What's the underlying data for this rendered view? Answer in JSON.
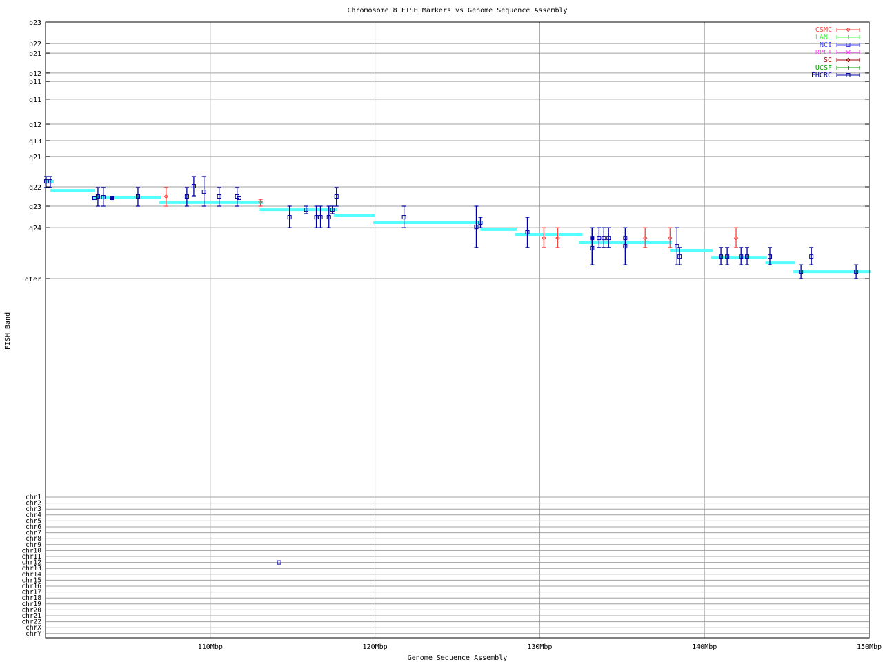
{
  "chart_data": {
    "type": "scatter",
    "title": "Chromosome 8 FISH Markers vs Genome Sequence Assembly",
    "xlabel": "Genome Sequence Assembly",
    "ylabel": "FISH Band",
    "xlim": [
      100,
      150
    ],
    "grid": true,
    "legend_position": "top-right",
    "x_ticks": [
      {
        "value": 110,
        "label": "110Mbp"
      },
      {
        "value": 120,
        "label": "120Mbp"
      },
      {
        "value": 130,
        "label": "130Mbp"
      },
      {
        "value": 140,
        "label": "140Mbp"
      },
      {
        "value": 150,
        "label": "150Mbp"
      }
    ],
    "band_ticks": [
      {
        "value": 0,
        "label": "p23"
      },
      {
        "value": 12.2,
        "label": "p22"
      },
      {
        "value": 17.7,
        "label": "p21"
      },
      {
        "value": 29.0,
        "label": "p12"
      },
      {
        "value": 33.8,
        "label": "p11"
      },
      {
        "value": 43.9,
        "label": "q11"
      },
      {
        "value": 58.1,
        "label": "q12"
      },
      {
        "value": 67.5,
        "label": "q13"
      },
      {
        "value": 76.5,
        "label": "q21"
      },
      {
        "value": 93.8,
        "label": "q22"
      },
      {
        "value": 104.8,
        "label": "q23"
      },
      {
        "value": 117.0,
        "label": "q24"
      },
      {
        "value": 146.0,
        "label": "qter"
      }
    ],
    "band_ylim": [
      0,
      146
    ],
    "chr_ticks": [
      "chr1",
      "chr2",
      "chr3",
      "chr4",
      "chr5",
      "chr6",
      "chr7",
      "chr8",
      "chr9",
      "chr10",
      "chr11",
      "chr12",
      "chr13",
      "chr14",
      "chr15",
      "chr16",
      "chr17",
      "chr18",
      "chr19",
      "chr20",
      "chr21",
      "chr22",
      "chrX",
      "chrY"
    ],
    "legend": [
      {
        "name": "CSMC",
        "color": "#ff4040",
        "marker": "diamond"
      },
      {
        "name": "LANL",
        "color": "#40ff40",
        "marker": "plus"
      },
      {
        "name": "NCI",
        "color": "#4040ff",
        "marker": "square"
      },
      {
        "name": "RPCI",
        "color": "#ff40ff",
        "marker": "cross"
      },
      {
        "name": "SC",
        "color": "#a00000",
        "marker": "diamond"
      },
      {
        "name": "UCSF",
        "color": "#00a000",
        "marker": "plus"
      },
      {
        "name": "FHCRC",
        "color": "#0000a0",
        "marker": "square"
      }
    ],
    "assembly_color": "#55ffff",
    "assembly_segments": [
      {
        "x": [
          100.0,
          100.5
        ],
        "y": 90.7
      },
      {
        "x": [
          100.3,
          103.0
        ],
        "y": 95.8
      },
      {
        "x": [
          102.8,
          107.0
        ],
        "y": 99.7
      },
      {
        "x": [
          106.9,
          113.2
        ],
        "y": 102.8
      },
      {
        "x": [
          113.0,
          117.7
        ],
        "y": 106.8
      },
      {
        "x": [
          117.5,
          120.0
        ],
        "y": 109.9
      },
      {
        "x": [
          119.9,
          126.5
        ],
        "y": 114.2
      },
      {
        "x": [
          126.4,
          128.6
        ],
        "y": 118.1
      },
      {
        "x": [
          128.5,
          132.6
        ],
        "y": 120.9
      },
      {
        "x": [
          132.4,
          138.0
        ],
        "y": 125.6
      },
      {
        "x": [
          137.9,
          140.5
        ],
        "y": 129.9
      },
      {
        "x": [
          140.4,
          143.8
        ],
        "y": 133.9
      },
      {
        "x": [
          143.7,
          145.5
        ],
        "y": 137.0
      },
      {
        "x": [
          145.4,
          150.1
        ],
        "y": 142.1
      }
    ],
    "points": [
      {
        "set": "FHCRC",
        "x": 100.04,
        "y": 90.7,
        "ylo": 87.9,
        "yhi": 94.2
      },
      {
        "set": "FHCRC",
        "x": 100.29,
        "y": 90.7,
        "ylo": 87.9,
        "yhi": 94.2
      },
      {
        "set": "FHCRC",
        "x": 102.97,
        "y": 100.1
      },
      {
        "set": "FHCRC",
        "x": 103.18,
        "y": 99.3,
        "ylo": 94.2,
        "yhi": 104.8
      },
      {
        "set": "FHCRC",
        "x": 103.51,
        "y": 99.7,
        "ylo": 94.2,
        "yhi": 104.8
      },
      {
        "set": "FHCRC",
        "x": 104.02,
        "y": 100.1,
        "filled": true
      },
      {
        "set": "FHCRC",
        "x": 105.61,
        "y": 99.3,
        "ylo": 94.2,
        "yhi": 104.8
      },
      {
        "set": "CSMC",
        "x": 107.32,
        "y": 99.3,
        "ylo": 94.2,
        "yhi": 104.8
      },
      {
        "set": "FHCRC",
        "x": 108.58,
        "y": 99.3,
        "ylo": 94.2,
        "yhi": 104.8
      },
      {
        "set": "FHCRC",
        "x": 109.0,
        "y": 93.4,
        "ylo": 87.9,
        "yhi": 98.9
      },
      {
        "set": "FHCRC",
        "x": 109.62,
        "y": 96.6,
        "ylo": 87.9,
        "yhi": 104.8
      },
      {
        "set": "FHCRC",
        "x": 110.54,
        "y": 99.3,
        "ylo": 94.2,
        "yhi": 104.8
      },
      {
        "set": "FHCRC",
        "x": 111.63,
        "y": 99.3,
        "ylo": 94.2,
        "yhi": 104.8
      },
      {
        "set": "FHCRC",
        "x": 111.76,
        "y": 100.1
      },
      {
        "set": "CSMC",
        "x": 113.05,
        "y": 102.4,
        "ylo": 100.9,
        "yhi": 104.8
      },
      {
        "set": "FHCRC",
        "x": 114.81,
        "y": 111.1,
        "ylo": 104.8,
        "yhi": 117.0
      },
      {
        "set": "FHCRC",
        "x": 115.82,
        "y": 106.8,
        "ylo": 104.8,
        "yhi": 109.1
      },
      {
        "set": "FHCRC",
        "x": 116.44,
        "y": 111.1,
        "ylo": 104.8,
        "yhi": 117.0
      },
      {
        "set": "FHCRC",
        "x": 116.69,
        "y": 111.1,
        "ylo": 104.8,
        "yhi": 117.0
      },
      {
        "set": "FHCRC",
        "x": 117.2,
        "y": 111.1,
        "ylo": 104.8,
        "yhi": 117.0
      },
      {
        "set": "FHCRC",
        "x": 117.41,
        "y": 106.8,
        "ylo": 104.8,
        "yhi": 109.1
      },
      {
        "set": "FHCRC",
        "x": 117.66,
        "y": 99.3,
        "ylo": 94.2,
        "yhi": 104.8
      },
      {
        "set": "FHCRC",
        "x": 121.76,
        "y": 111.1,
        "ylo": 104.8,
        "yhi": 117.0
      },
      {
        "set": "FHCRC",
        "x": 126.15,
        "y": 116.6,
        "ylo": 104.8,
        "yhi": 128.3
      },
      {
        "set": "FHCRC",
        "x": 126.4,
        "y": 114.2,
        "ylo": 111.1,
        "yhi": 117.0
      },
      {
        "set": "FHCRC",
        "x": 129.25,
        "y": 119.7,
        "ylo": 111.1,
        "yhi": 128.3
      },
      {
        "set": "CSMC",
        "x": 130.25,
        "y": 122.9,
        "ylo": 117.0,
        "yhi": 128.3
      },
      {
        "set": "CSMC",
        "x": 131.09,
        "y": 122.9,
        "ylo": 117.0,
        "yhi": 128.3
      },
      {
        "set": "FHCRC",
        "x": 133.18,
        "y": 122.9,
        "ylo": 117.0,
        "yhi": 138.2,
        "filled": true
      },
      {
        "set": "FHCRC",
        "x": 133.18,
        "y": 128.7,
        "ylo": 117.0,
        "yhi": 138.2
      },
      {
        "set": "FHCRC",
        "x": 133.6,
        "y": 122.9,
        "ylo": 117.0,
        "yhi": 128.3
      },
      {
        "set": "FHCRC",
        "x": 133.89,
        "y": 122.9,
        "ylo": 117.0,
        "yhi": 128.3
      },
      {
        "set": "FHCRC",
        "x": 134.18,
        "y": 122.9,
        "ylo": 117.0,
        "yhi": 128.3
      },
      {
        "set": "FHCRC",
        "x": 135.19,
        "y": 122.9,
        "ylo": 117.0,
        "yhi": 138.2
      },
      {
        "set": "FHCRC",
        "x": 135.19,
        "y": 127.6
      },
      {
        "set": "CSMC",
        "x": 136.4,
        "y": 122.9,
        "ylo": 117.0,
        "yhi": 128.3
      },
      {
        "set": "CSMC",
        "x": 137.91,
        "y": 122.9,
        "ylo": 117.0,
        "yhi": 128.3
      },
      {
        "set": "FHCRC",
        "x": 138.33,
        "y": 127.6,
        "ylo": 117.0,
        "yhi": 138.2
      },
      {
        "set": "FHCRC",
        "x": 138.49,
        "y": 133.5,
        "ylo": 128.3,
        "yhi": 138.2
      },
      {
        "set": "FHCRC",
        "x": 141.0,
        "y": 133.5,
        "ylo": 128.3,
        "yhi": 138.2
      },
      {
        "set": "FHCRC",
        "x": 141.38,
        "y": 133.5,
        "ylo": 128.3,
        "yhi": 138.2
      },
      {
        "set": "CSMC",
        "x": 141.92,
        "y": 122.9,
        "ylo": 117.0,
        "yhi": 128.3
      },
      {
        "set": "FHCRC",
        "x": 142.22,
        "y": 133.5,
        "ylo": 128.3,
        "yhi": 138.2
      },
      {
        "set": "FHCRC",
        "x": 142.59,
        "y": 133.5,
        "ylo": 128.3,
        "yhi": 138.2
      },
      {
        "set": "FHCRC",
        "x": 143.97,
        "y": 133.5,
        "ylo": 128.3,
        "yhi": 138.2
      },
      {
        "set": "FHCRC",
        "x": 145.86,
        "y": 142.1,
        "ylo": 138.2,
        "yhi": 146.0
      },
      {
        "set": "FHCRC",
        "x": 146.49,
        "y": 133.5,
        "ylo": 128.3,
        "yhi": 138.2
      },
      {
        "set": "FHCRC",
        "x": 149.21,
        "y": 142.1,
        "ylo": 138.2,
        "yhi": 146.0
      }
    ],
    "other_chr_points": [
      {
        "set": "FHCRC",
        "x": 114.18,
        "chr": "chr12"
      }
    ]
  }
}
